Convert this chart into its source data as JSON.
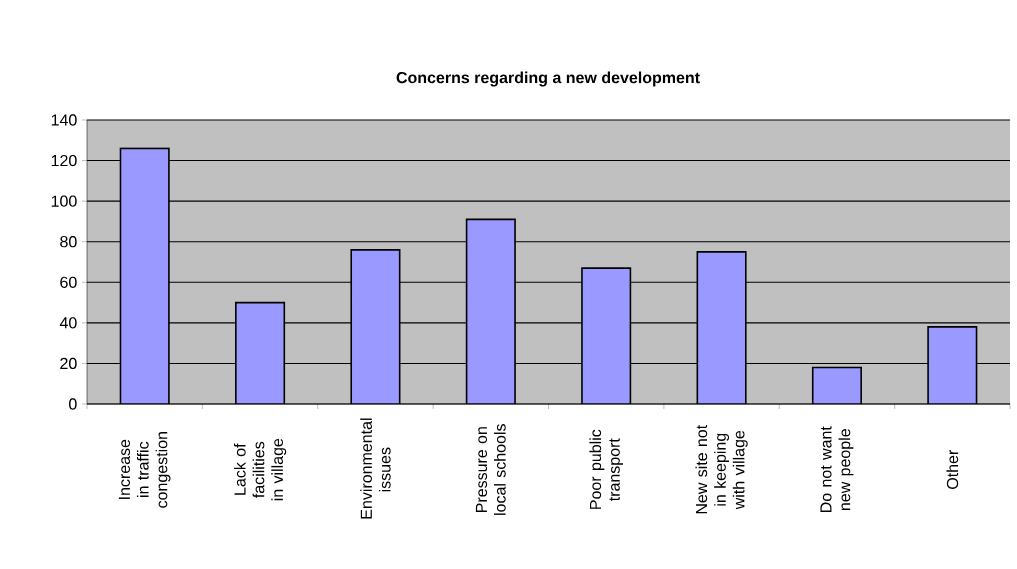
{
  "chart_data": {
    "type": "bar",
    "title": "Concerns regarding a new development",
    "categories": [
      "Increase in traffic congestion",
      "Lack of facilities in village",
      "Environmental issues",
      "Pressure on local schools",
      "Poor public transport",
      "New site not in keeping with village",
      "Do not want new people",
      "Other"
    ],
    "values": [
      126,
      50,
      76,
      91,
      67,
      75,
      18,
      38
    ],
    "color": "#9999ff",
    "ylim": [
      0,
      140
    ],
    "yticks": [
      0,
      20,
      40,
      60,
      80,
      100,
      120,
      140
    ],
    "grid": "y"
  }
}
